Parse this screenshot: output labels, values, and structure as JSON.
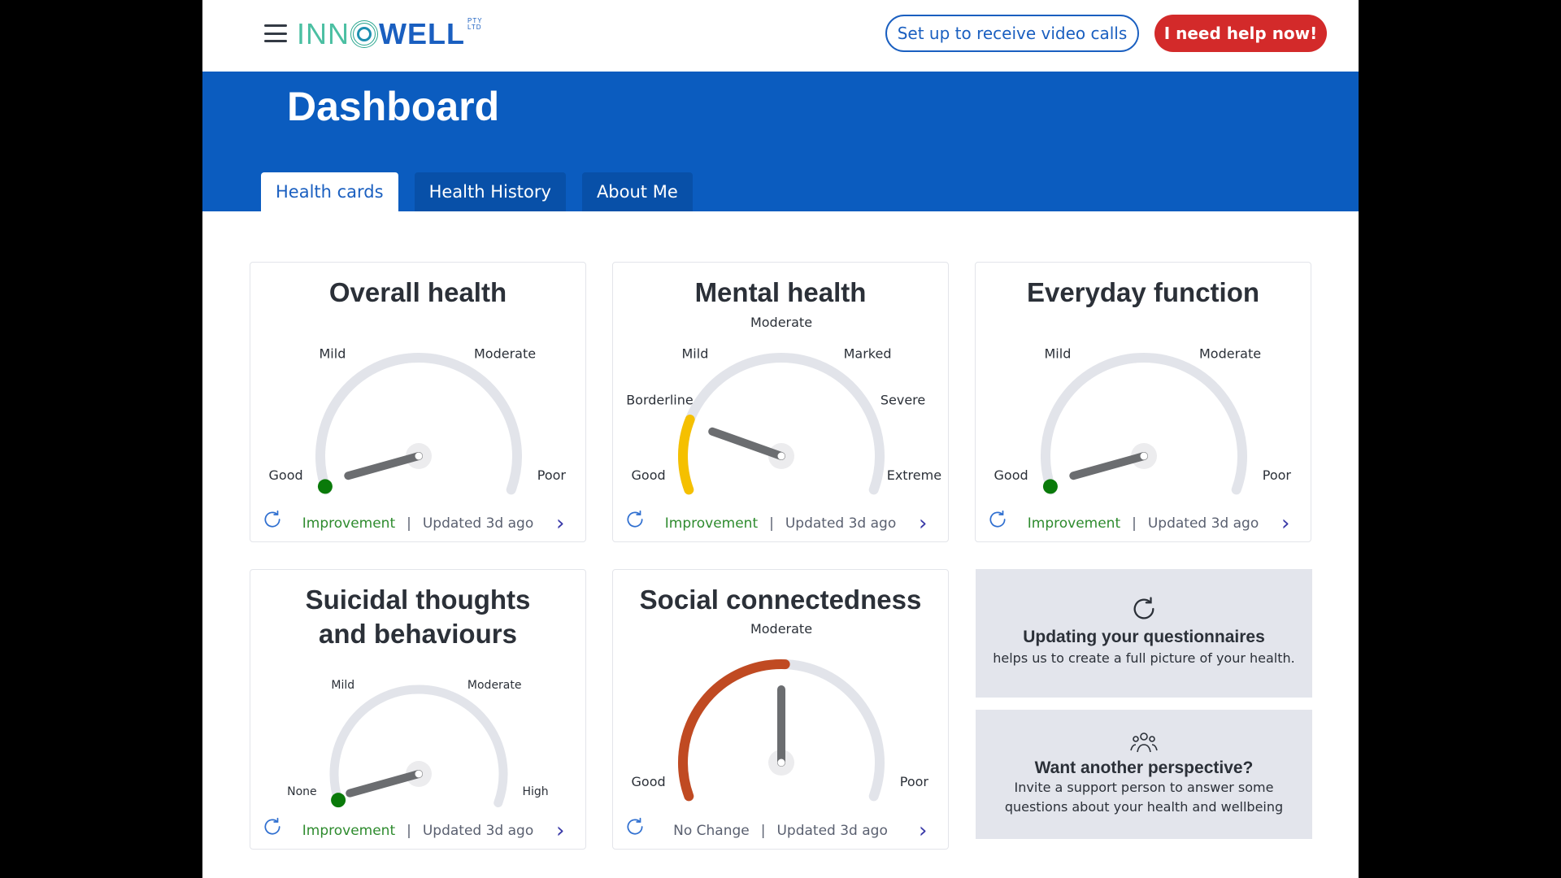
{
  "header": {
    "logo_text": "INNOWELL",
    "logo_suffix": "PTY LTD",
    "video_button": "Set up to receive video calls",
    "help_button": "I need help now!"
  },
  "banner": {
    "title": "Dashboard",
    "tabs": [
      {
        "label": "Health cards",
        "active": true
      },
      {
        "label": "Health History",
        "active": false
      },
      {
        "label": "About Me",
        "active": false
      }
    ]
  },
  "cards": [
    {
      "title": "Overall health",
      "labels": [
        "Good",
        "Mild",
        "Moderate",
        "Poor"
      ],
      "value": 0.02,
      "band_fill": 0,
      "band_color": "#0a7a0a",
      "status": "Improvement",
      "updated": "Updated 3d ago"
    },
    {
      "title": "Mental health",
      "labels": [
        "Good",
        "Borderline",
        "Mild",
        "Moderate",
        "Marked",
        "Severe",
        "Extreme"
      ],
      "value": 0.18,
      "band_fill": 0.19,
      "band_color": "#f5c000",
      "status": "Improvement",
      "updated": "Updated 3d ago"
    },
    {
      "title": "Everyday function",
      "labels": [
        "Good",
        "Mild",
        "Moderate",
        "Poor"
      ],
      "value": 0.02,
      "band_fill": 0,
      "band_color": "#0a7a0a",
      "status": "Improvement",
      "updated": "Updated 3d ago"
    },
    {
      "title": "Suicidal thoughts and behaviours",
      "labels": [
        "None",
        "Mild",
        "Moderate",
        "High"
      ],
      "value": 0.02,
      "band_fill": 0,
      "band_color": "#0a7a0a",
      "status": "Improvement",
      "updated": "Updated 3d ago"
    },
    {
      "title": "Social connectedness",
      "labels": [
        "Good",
        "Moderate",
        "Poor"
      ],
      "value": 0.5,
      "band_fill": 0.51,
      "band_color": "#c04a22",
      "status": "No Change",
      "updated": "Updated 3d ago"
    }
  ],
  "info_cards": [
    {
      "icon": "refresh-icon",
      "title": "Updating your questionnaires",
      "text": "helps us to create a full picture of your health."
    },
    {
      "icon": "people-icon",
      "title": "Want another perspective?",
      "text": "Invite a support person to answer some questions about your health and wellbeing"
    }
  ],
  "separator": "|",
  "chevron": "›"
}
